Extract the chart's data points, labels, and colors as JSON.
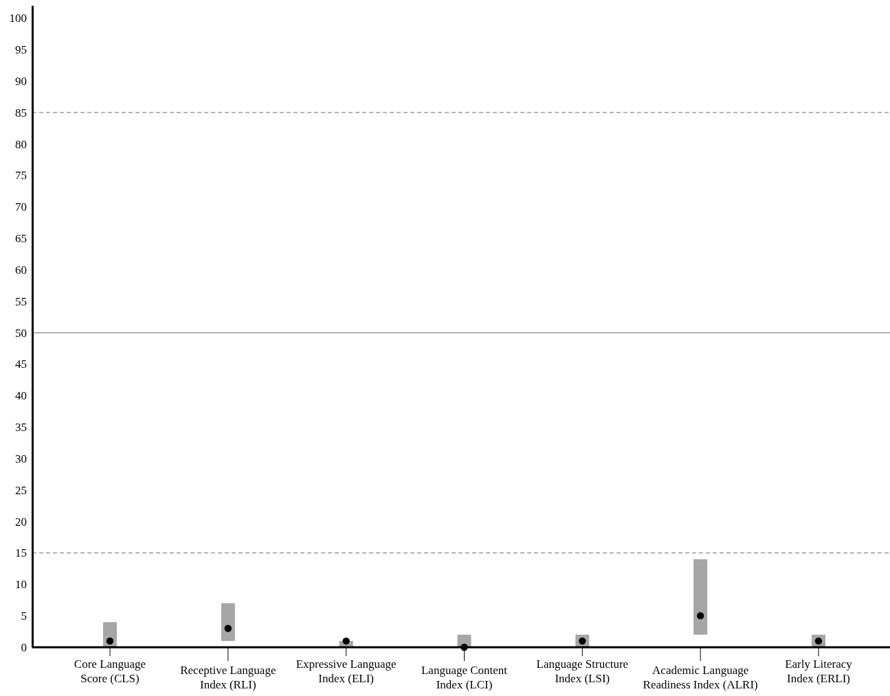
{
  "chart_data": {
    "type": "bar",
    "categories": [
      "Core Language Score (CLS)",
      "Receptive Language Index (RLI)",
      "Expressive Language Index (ELI)",
      "Language Content Index (LCI)",
      "Language Structure Index (LSI)",
      "Academic Language Readiness Index (ALRI)",
      "Early Literacy Index (ERLI)"
    ],
    "series": [
      {
        "color": "#a6a6a6",
        "base": [
          0,
          1,
          0,
          0,
          0,
          2,
          0
        ],
        "values": [
          4,
          6,
          1,
          2,
          2,
          12,
          2
        ]
      },
      {
        "type": "scatter",
        "color": "#000000",
        "marker": "circle",
        "x": [
          "Core Language Score (CLS)",
          "Receptive Language Index (RLI)",
          "Expressive Language Index (ELI)",
          "Language Content Index (LCI)",
          "Language Structure Index (LSI)",
          "Academic Language Readiness Index (ALRI)",
          "Early Literacy Index (ERLI)"
        ],
        "values": [
          1,
          3,
          1,
          0,
          1,
          5,
          1
        ]
      }
    ],
    "ylim": [
      0,
      102
    ],
    "yticks": [
      0,
      5,
      10,
      15,
      20,
      25,
      30,
      35,
      40,
      45,
      50,
      55,
      60,
      65,
      70,
      75,
      80,
      85,
      90,
      95,
      100
    ],
    "ref_lines": [
      {
        "axis": "y",
        "value": 85,
        "color": "#999999",
        "line_style": "dashed"
      },
      {
        "axis": "y",
        "value": 50,
        "color": "#999999",
        "line_style": "solid"
      },
      {
        "axis": "y",
        "value": 15,
        "color": "#999999",
        "line_style": "dashed"
      }
    ]
  }
}
